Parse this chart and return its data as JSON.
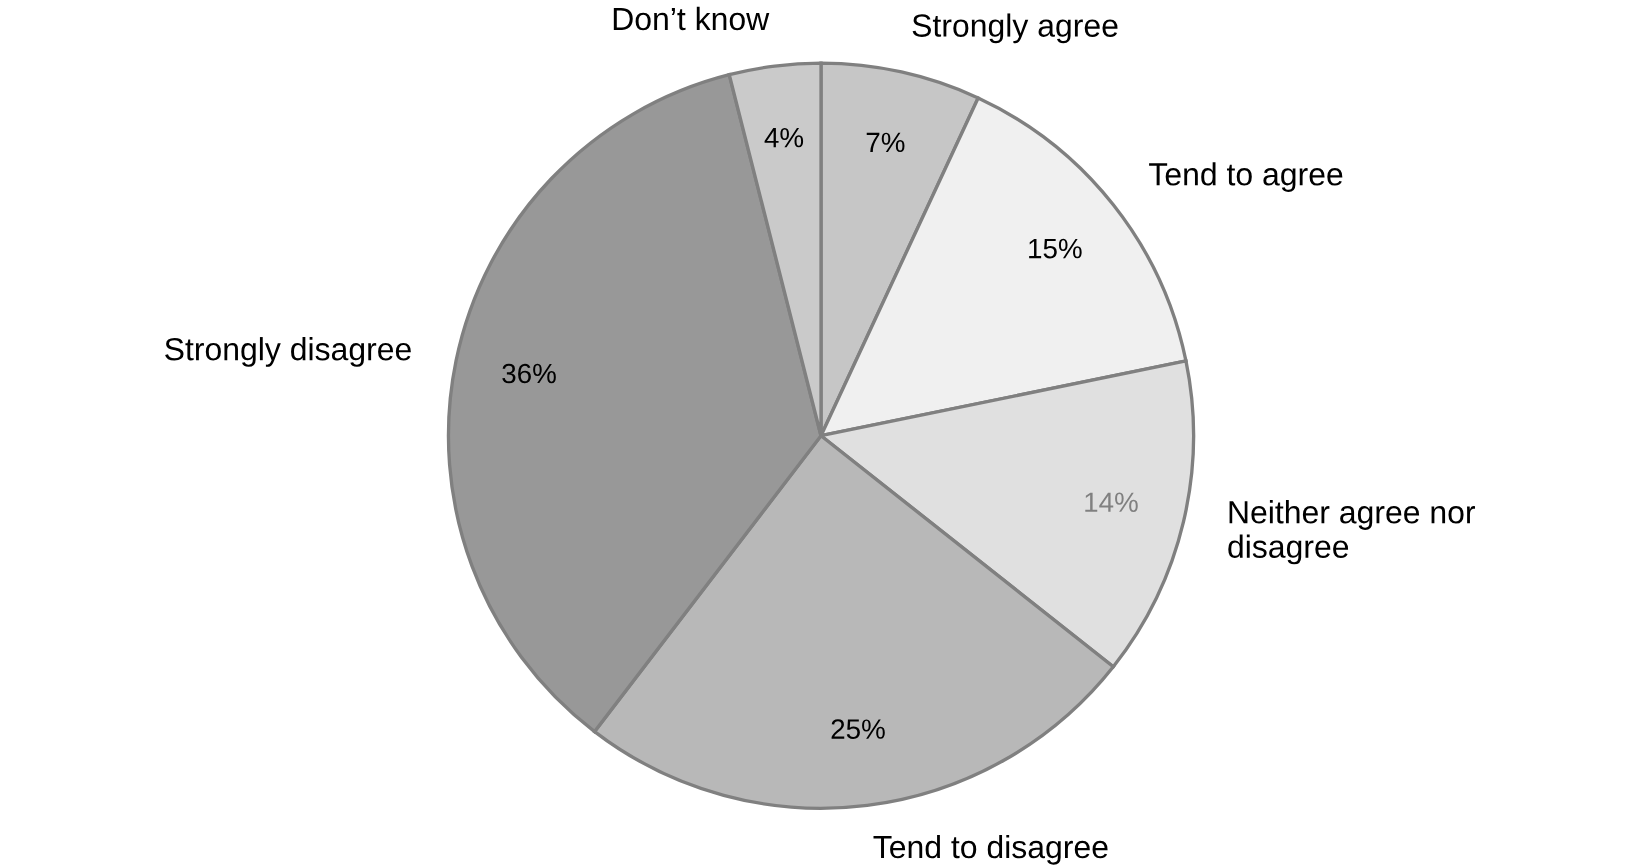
{
  "chart_data": {
    "type": "pie",
    "categories": [
      "Strongly agree",
      "Tend to agree",
      "Neither agree nor\ndisagree",
      "Tend to disagree",
      "Strongly disagree",
      "Don’t know"
    ],
    "values": [
      7,
      15,
      14,
      25,
      36,
      4
    ],
    "colors": [
      "#c6c6c6",
      "#f0f0f0",
      "#e0e0e0",
      "#b8b8b8",
      "#989898",
      "#cacaca"
    ],
    "value_labels": [
      "7%",
      "15%",
      "14%",
      "25%",
      "36%",
      "4%"
    ]
  }
}
